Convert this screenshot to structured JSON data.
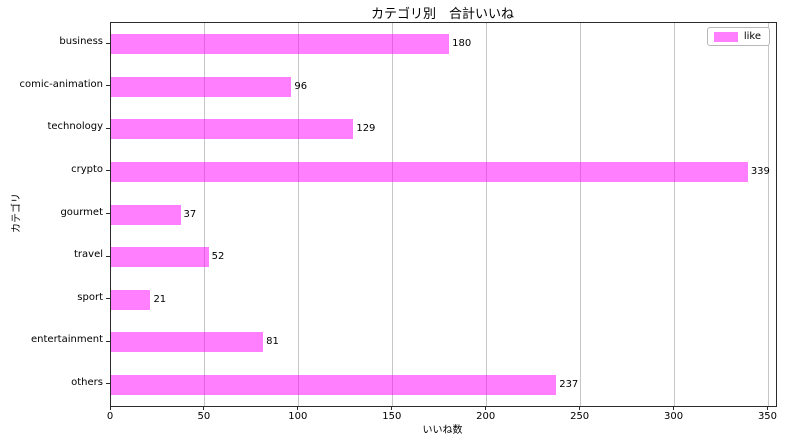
{
  "chart_data": {
    "type": "bar",
    "orientation": "horizontal",
    "title": "カテゴリ別　合計いいね",
    "xlabel": "いいね数",
    "ylabel": "カテゴリ",
    "categories": [
      "business",
      "comic-animation",
      "technology",
      "crypto",
      "gourmet",
      "travel",
      "sport",
      "entertainment",
      "others"
    ],
    "series": [
      {
        "name": "like",
        "values": [
          180,
          96,
          129,
          339,
          37,
          52,
          21,
          81,
          237
        ]
      }
    ],
    "value_labels": [
      "180",
      "96",
      "129",
      "339",
      "37",
      "52",
      "21",
      "81",
      "237"
    ],
    "xlim": [
      0,
      354
    ],
    "xticks": [
      0,
      50,
      100,
      150,
      200,
      250,
      300,
      350
    ],
    "grid": true,
    "legend_position": "upper-right",
    "colors": {
      "bar_fill": "rgba(255,0,255,0.5)",
      "bar_fill_hex_on_white": "#ff80ff",
      "grid": "#c6c6c6",
      "spine": "#2b2b2b",
      "text": "#000000",
      "background": "#ffffff"
    }
  }
}
